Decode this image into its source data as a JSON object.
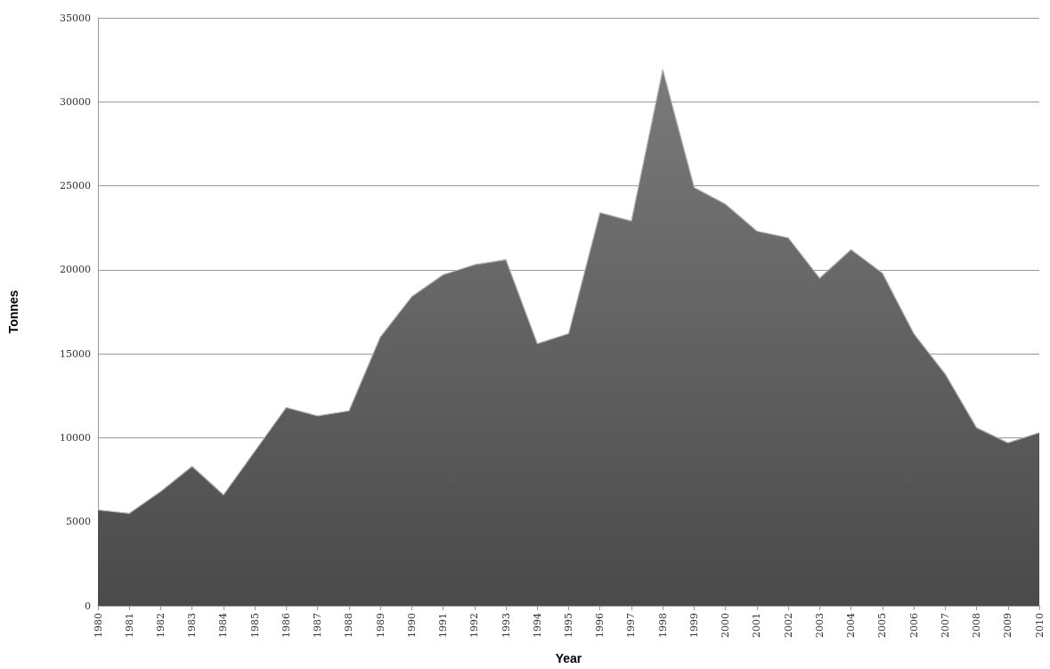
{
  "chart_data": {
    "type": "area",
    "xlabel": "Year",
    "ylabel": "Tonnes",
    "categories": [
      "1980",
      "1981",
      "1982",
      "1983",
      "1984",
      "1985",
      "1986",
      "1987",
      "1988",
      "1989",
      "1990",
      "1991",
      "1992",
      "1993",
      "1994",
      "1995",
      "1996",
      "1997",
      "1998",
      "1999",
      "2000",
      "2001",
      "2002",
      "2003",
      "2004",
      "2005",
      "2006",
      "2007",
      "2008",
      "2009",
      "2010"
    ],
    "series": [
      {
        "color": "#7a7a7a",
        "values": [
          5700,
          5500,
          6800,
          8300,
          6600,
          9200,
          11800,
          11300,
          11600,
          16000,
          18400,
          19700,
          20300,
          20600,
          15600,
          16200,
          23400,
          22900,
          31900,
          24900,
          23900,
          22300,
          21900,
          19500,
          21200,
          19800,
          16200,
          13800,
          10600,
          9700,
          10300
        ]
      }
    ],
    "ylim": [
      0,
      35000
    ],
    "yticks": [
      0,
      5000,
      10000,
      15000,
      20000,
      25000,
      30000,
      35000
    ],
    "grid": "y",
    "marker": "none"
  }
}
